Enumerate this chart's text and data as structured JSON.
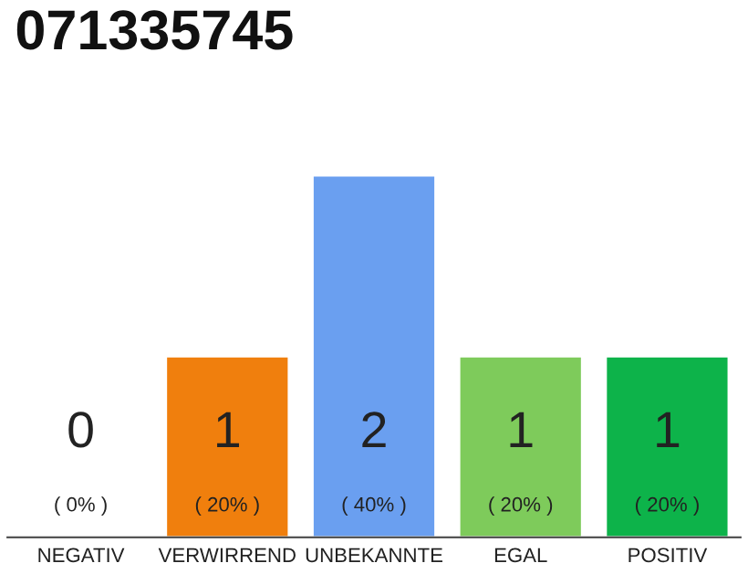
{
  "chart_data": {
    "type": "bar",
    "title": "071335745",
    "categories": [
      "NEGATIV",
      "VERWIRREND",
      "UNBEKANNTE",
      "EGAL",
      "POSITIV"
    ],
    "values": [
      0,
      1,
      2,
      1,
      1
    ],
    "colors": [
      null,
      "#f07f0d",
      "#6a9ff0",
      "#7ecb5b",
      "#0db34a"
    ],
    "data_labels": true,
    "annotations": [
      "( 0% )",
      "( 20% )",
      "( 40% )",
      "( 20% )",
      "( 20% )"
    ],
    "grid": false,
    "legend": false
  }
}
